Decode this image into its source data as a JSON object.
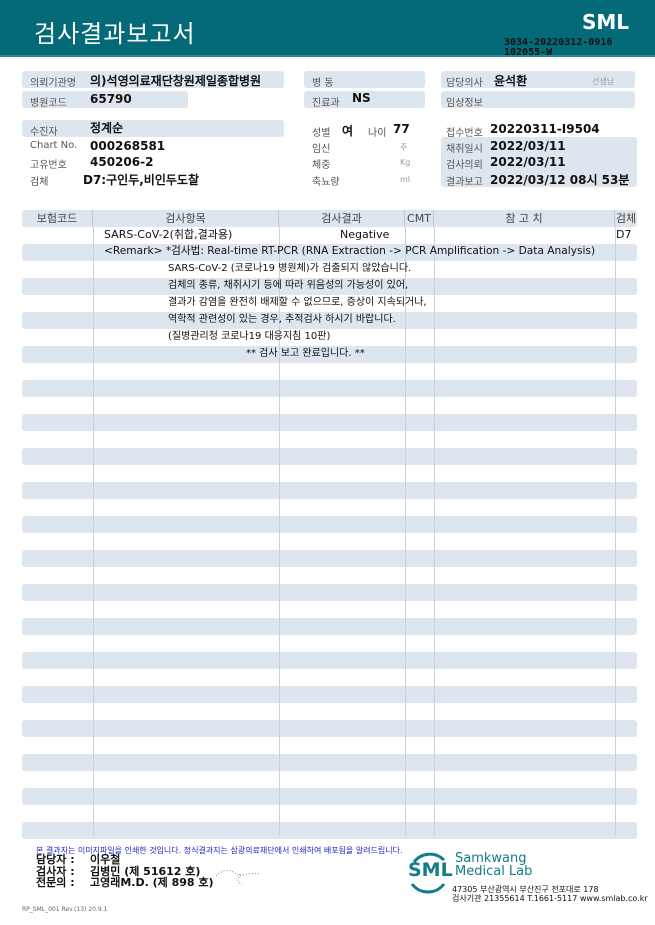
{
  "header": {
    "title": "검사결과보고서",
    "logo": "SML",
    "doc_no_1": "3034-20220312-0916",
    "doc_no_2": "102055-W",
    "brand_color": "#046a78"
  },
  "info": {
    "requester_label": "의뢰기관명",
    "requester": "의)석영의료재단창원제일종합병원",
    "hospital_code_label": "병원코드",
    "hospital_code": "65790",
    "ward_label": "병 동",
    "ward": "",
    "dept_label": "진료과",
    "dept": "NS",
    "doctor_label": "담당의사",
    "doctor": "윤석환",
    "doctor_suffix": "선생님",
    "clinical_label": "임상정보",
    "clinical": "",
    "patient_label": "수진자",
    "patient": "정계순",
    "chart_label": "Chart No.",
    "chart": "000268581",
    "id_label": "고유번호",
    "id": "450206-2",
    "specimen_label": "검체",
    "specimen": "D7:구인두,비인두도찰",
    "sex_label": "성별",
    "sex": "여",
    "age_label": "나이",
    "age": "77",
    "preg_label": "임신",
    "preg_unit": "주",
    "weight_label": "체중",
    "weight_unit": "Kg",
    "urine_label": "축뇨량",
    "urine_unit": "ml",
    "receipt_label": "접수번호",
    "receipt": "20220311-I9504",
    "collect_label": "채취일시",
    "collect": "2022/03/11",
    "request_label": "검사의뢰",
    "request": "2022/03/11",
    "report_label": "결과보고",
    "report": "2022/03/12 08시 53분"
  },
  "table": {
    "columns": [
      "보험코드",
      "검사항목",
      "검사결과",
      "CMT",
      "참 고 치",
      "검체"
    ],
    "item": "SARS-CoV-2(취합,결과용)",
    "result": "Negative",
    "specimen": "D7",
    "remark": "<Remark> *검사법: Real-time RT-PCR (RNA Extraction -> PCR Amplification -> Data Analysis)",
    "lines": [
      "SARS-CoV-2 (코로나19 병원체)가 검출되지 않았습니다.",
      "검체의 종류, 채취시기 등에 따라 위음성의 가능성이 있어,",
      "결과가 감염을 완전히 배제할 수 없으므로, 증상이 지속되거나,",
      "역학적 관련성이 있는 경우, 추적검사 하시기 바랍니다.",
      "(질병관리청 코로나19 대응지침 10판)"
    ],
    "end": "** 검사 보고 완료입니다. **"
  },
  "footer": {
    "notice": "본 결과지는 이미지파일을 인쇄한 것입니다. 정식결과지는 삼광의료재단에서 인쇄하여 배포됨을 알려드립니다.",
    "manager_label": "담당자 :",
    "manager": "이우철",
    "tester_label": "검사자 :",
    "tester": "김병민 (제 51612 호)",
    "specialist_label": "전문의 :",
    "specialist": "고영래M.D. (제 898 호)",
    "lab_name_1": "Samkwang",
    "lab_name_2": "Medical Lab",
    "logo": "SML",
    "address": "47305 부산광역시 부산진구 전포대로 178",
    "contact": "검사기관 21355614 T.1661-5117 www.smlab.co.kr",
    "form_code": "RP_SML_001 Rev.(13) 20.9.1"
  }
}
